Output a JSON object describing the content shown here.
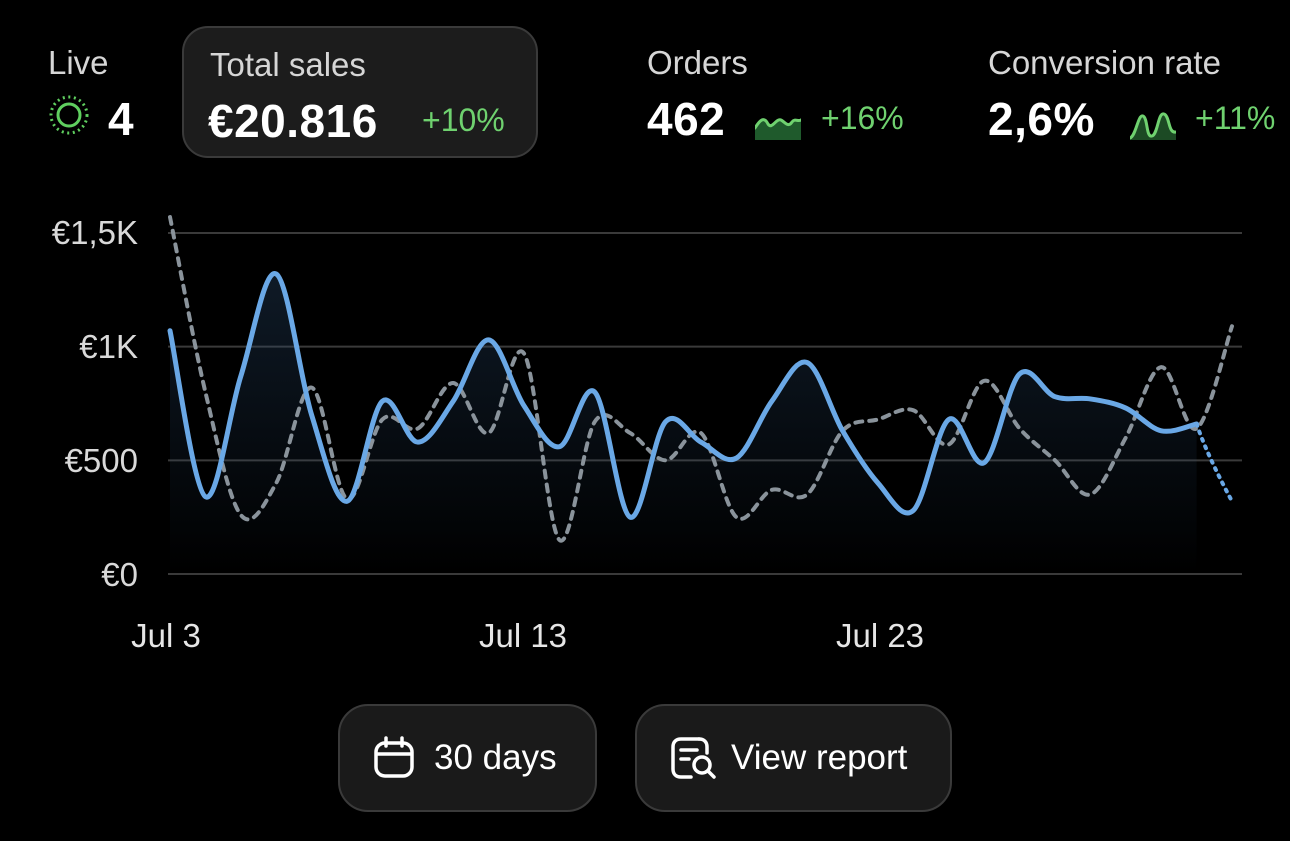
{
  "metrics": {
    "live": {
      "label": "Live",
      "value": "4",
      "icon": "live-ring-icon"
    },
    "total_sales": {
      "label": "Total sales",
      "value": "€20.816",
      "change": "+10%"
    },
    "orders": {
      "label": "Orders",
      "value": "462",
      "change": "+16%",
      "icon": "sparkline-icon"
    },
    "conversion_rate": {
      "label": "Conversion rate",
      "value": "2,6%",
      "change": "+11%",
      "icon": "sparkline-icon"
    }
  },
  "colors": {
    "background": "#000000",
    "positive": "#6fd16f",
    "current_series": "#6aa8e6",
    "previous_series": "#8a939b",
    "gridline": "#3a3a3a"
  },
  "chart_data": {
    "type": "line",
    "y_ticks": [
      "€0",
      "€500",
      "€1K",
      "€1,5K"
    ],
    "x_ticks": [
      "Jul 3",
      "Jul 13",
      "Jul 23"
    ],
    "ylim": [
      0,
      1500
    ],
    "grid": true,
    "series": [
      {
        "style": "solid",
        "points": [
          [
            "Jul 3",
            1070
          ],
          [
            "Jul 4",
            340
          ],
          [
            "Jul 5",
            870
          ],
          [
            "Jul 6",
            1320
          ],
          [
            "Jul 7",
            700
          ],
          [
            "Jul 8",
            320
          ],
          [
            "Jul 9",
            760
          ],
          [
            "Jul 10",
            580
          ],
          [
            "Jul 11",
            760
          ],
          [
            "Jul 12",
            1030
          ],
          [
            "Jul 13",
            740
          ],
          [
            "Jul 14",
            560
          ],
          [
            "Jul 15",
            800
          ],
          [
            "Jul 16",
            250
          ],
          [
            "Jul 17",
            670
          ],
          [
            "Jul 18",
            580
          ],
          [
            "Jul 19",
            510
          ],
          [
            "Jul 20",
            760
          ],
          [
            "Jul 21",
            930
          ],
          [
            "Jul 22",
            630
          ],
          [
            "Jul 23",
            400
          ],
          [
            "Jul 24",
            280
          ],
          [
            "Jul 25",
            680
          ],
          [
            "Jul 26",
            490
          ],
          [
            "Jul 27",
            880
          ],
          [
            "Jul 28",
            780
          ],
          [
            "Jul 29",
            770
          ],
          [
            "Jul 30",
            730
          ],
          [
            "Jul 31",
            630
          ],
          [
            "Aug 1",
            660
          ]
        ]
      },
      {
        "style": "dashed",
        "points": [
          [
            "Jul 3",
            1570
          ],
          [
            "Jul 4",
            800
          ],
          [
            "Jul 5",
            260
          ],
          [
            "Jul 6",
            400
          ],
          [
            "Jul 7",
            820
          ],
          [
            "Jul 8",
            330
          ],
          [
            "Jul 9",
            680
          ],
          [
            "Jul 10",
            640
          ],
          [
            "Jul 11",
            840
          ],
          [
            "Jul 12",
            620
          ],
          [
            "Jul 13",
            970
          ],
          [
            "Jul 14",
            150
          ],
          [
            "Jul 15",
            670
          ],
          [
            "Jul 16",
            620
          ],
          [
            "Jul 17",
            500
          ],
          [
            "Jul 18",
            620
          ],
          [
            "Jul 19",
            250
          ],
          [
            "Jul 20",
            370
          ],
          [
            "Jul 21",
            350
          ],
          [
            "Jul 22",
            630
          ],
          [
            "Jul 23",
            680
          ],
          [
            "Jul 24",
            720
          ],
          [
            "Jul 25",
            570
          ],
          [
            "Jul 26",
            850
          ],
          [
            "Jul 27",
            640
          ],
          [
            "Jul 28",
            500
          ],
          [
            "Jul 29",
            350
          ],
          [
            "Jul 30",
            600
          ],
          [
            "Jul 31",
            910
          ],
          [
            "Aug 1",
            640
          ],
          [
            "Aug 2",
            1090
          ]
        ]
      },
      {
        "style": "dotted",
        "points": [
          [
            "Aug 1",
            660
          ],
          [
            "Aug 2",
            320
          ]
        ]
      }
    ]
  },
  "actions": {
    "range_label": "30 days",
    "report_label": "View report"
  }
}
